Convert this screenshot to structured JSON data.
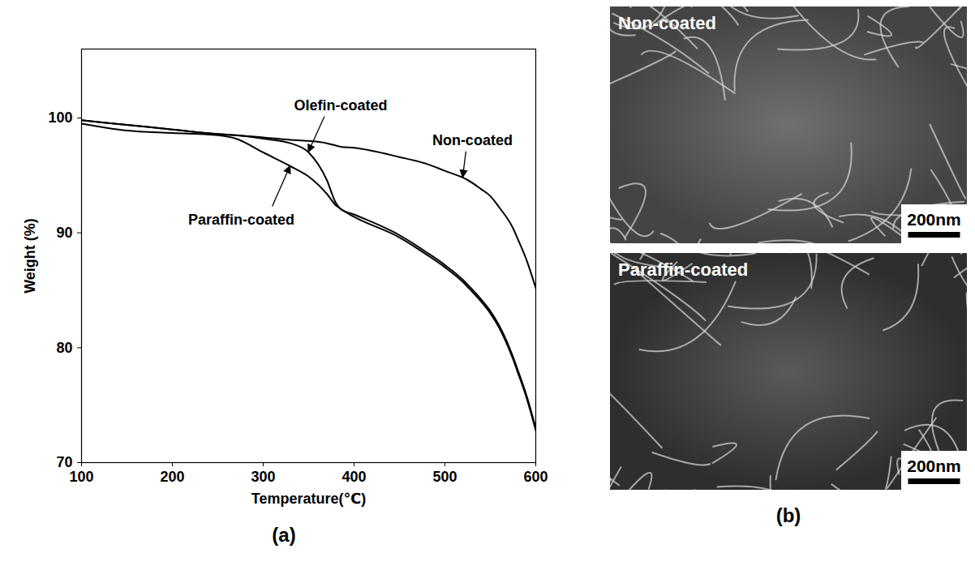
{
  "chart_data": {
    "type": "line",
    "panel_label": "(a)",
    "x_label": "Temperature(℃)",
    "y_label": "Weight (%)",
    "x": [
      100,
      150,
      200,
      250,
      270,
      300,
      330,
      350,
      370,
      380,
      385,
      400,
      450,
      480,
      500,
      520,
      525,
      540,
      550,
      560,
      575,
      580,
      590,
      600
    ],
    "series": [
      {
        "name": "Non-coated",
        "color": "#000000",
        "values": [
          99.8,
          99.4,
          99.0,
          98.6,
          98.5,
          98.3,
          98.1,
          98.0,
          97.8,
          97.6,
          97.5,
          97.4,
          96.6,
          96.0,
          95.4,
          94.8,
          94.6,
          93.8,
          93.2,
          92.2,
          90.4,
          89.5,
          87.6,
          85.2
        ]
      },
      {
        "name": "Olefin-coated",
        "color": "#000000",
        "values": [
          99.8,
          99.4,
          99.0,
          98.6,
          98.5,
          98.2,
          97.8,
          97.0,
          94.6,
          92.6,
          92.1,
          91.6,
          89.8,
          88.3,
          87.2,
          85.9,
          85.5,
          84.2,
          83.2,
          81.9,
          79.2,
          78.1,
          75.8,
          73.0
        ]
      },
      {
        "name": "Paraffin-coated",
        "color": "#000000",
        "values": [
          99.5,
          98.9,
          98.7,
          98.5,
          98.2,
          97.0,
          95.8,
          94.9,
          93.4,
          92.4,
          92.1,
          91.4,
          89.6,
          88.1,
          87.0,
          85.7,
          85.3,
          84.0,
          83.0,
          81.7,
          79.0,
          77.9,
          75.6,
          72.8
        ]
      }
    ],
    "xlim": [
      100,
      600
    ],
    "xticks": [
      100,
      200,
      300,
      400,
      500,
      600
    ],
    "ylim": [
      70,
      106
    ],
    "yticks": [
      70,
      80,
      90,
      100
    ],
    "grid": false
  },
  "micrographs": {
    "panel_label": "(b)",
    "images": [
      {
        "title": "Non-coated",
        "scale_bar": "200nm"
      },
      {
        "title": "Paraffin-coated",
        "scale_bar": "200nm"
      }
    ]
  }
}
